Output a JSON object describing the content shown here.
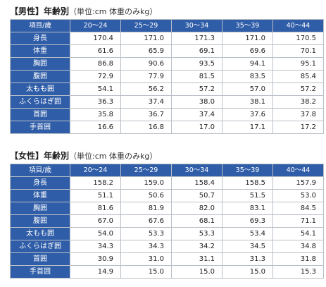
{
  "tables": [
    {
      "title_bracket": "【男性】年齢別",
      "title_unit": "（単位:cm 体重のみkg）",
      "corner": "項目/歳",
      "age_groups": [
        "20～24",
        "25～29",
        "30～34",
        "35～39",
        "40～44"
      ],
      "rows": [
        {
          "label": "身長",
          "values": [
            "170.4",
            "171.0",
            "171.3",
            "171.0",
            "170.5"
          ]
        },
        {
          "label": "体重",
          "values": [
            "61.6",
            "65.9",
            "69.1",
            "69.6",
            "70.1"
          ]
        },
        {
          "label": "胸囲",
          "values": [
            "86.8",
            "90.6",
            "93.5",
            "94.1",
            "95.1"
          ]
        },
        {
          "label": "腹囲",
          "values": [
            "72.9",
            "77.9",
            "81.5",
            "83.5",
            "85.4"
          ]
        },
        {
          "label": "太もも囲",
          "values": [
            "54.1",
            "56.2",
            "57.2",
            "57.0",
            "57.2"
          ]
        },
        {
          "label": "ふくらはぎ囲",
          "values": [
            "36.3",
            "37.4",
            "38.0",
            "38.1",
            "38.2"
          ]
        },
        {
          "label": "首囲",
          "values": [
            "35.8",
            "36.7",
            "37.4",
            "37.6",
            "37.8"
          ]
        },
        {
          "label": "手首囲",
          "values": [
            "16.6",
            "16.8",
            "17.0",
            "17.1",
            "17.2"
          ]
        }
      ]
    },
    {
      "title_bracket": "【女性】年齢別",
      "title_unit": "（単位:cm 体重のみkg）",
      "corner": "項目/歳",
      "age_groups": [
        "20～24",
        "25～29",
        "30～34",
        "35～39",
        "40～44"
      ],
      "rows": [
        {
          "label": "身長",
          "values": [
            "158.2",
            "159.0",
            "158.4",
            "158.5",
            "157.9"
          ]
        },
        {
          "label": "体重",
          "values": [
            "51.1",
            "50.6",
            "50.7",
            "51.5",
            "53.0"
          ]
        },
        {
          "label": "胸囲",
          "values": [
            "81.6",
            "81.9",
            "82.0",
            "83.1",
            "84.5"
          ]
        },
        {
          "label": "腹囲",
          "values": [
            "67.0",
            "67.6",
            "68.1",
            "69.3",
            "71.1"
          ]
        },
        {
          "label": "太もも囲",
          "values": [
            "54.0",
            "53.3",
            "53.3",
            "53.4",
            "54.1"
          ]
        },
        {
          "label": "ふくらはぎ囲",
          "values": [
            "34.3",
            "34.3",
            "34.2",
            "34.5",
            "34.8"
          ]
        },
        {
          "label": "首囲",
          "values": [
            "30.9",
            "31.0",
            "31.1",
            "31.3",
            "31.8"
          ]
        },
        {
          "label": "手首囲",
          "values": [
            "14.9",
            "15.0",
            "15.0",
            "15.0",
            "15.3"
          ]
        }
      ]
    }
  ]
}
